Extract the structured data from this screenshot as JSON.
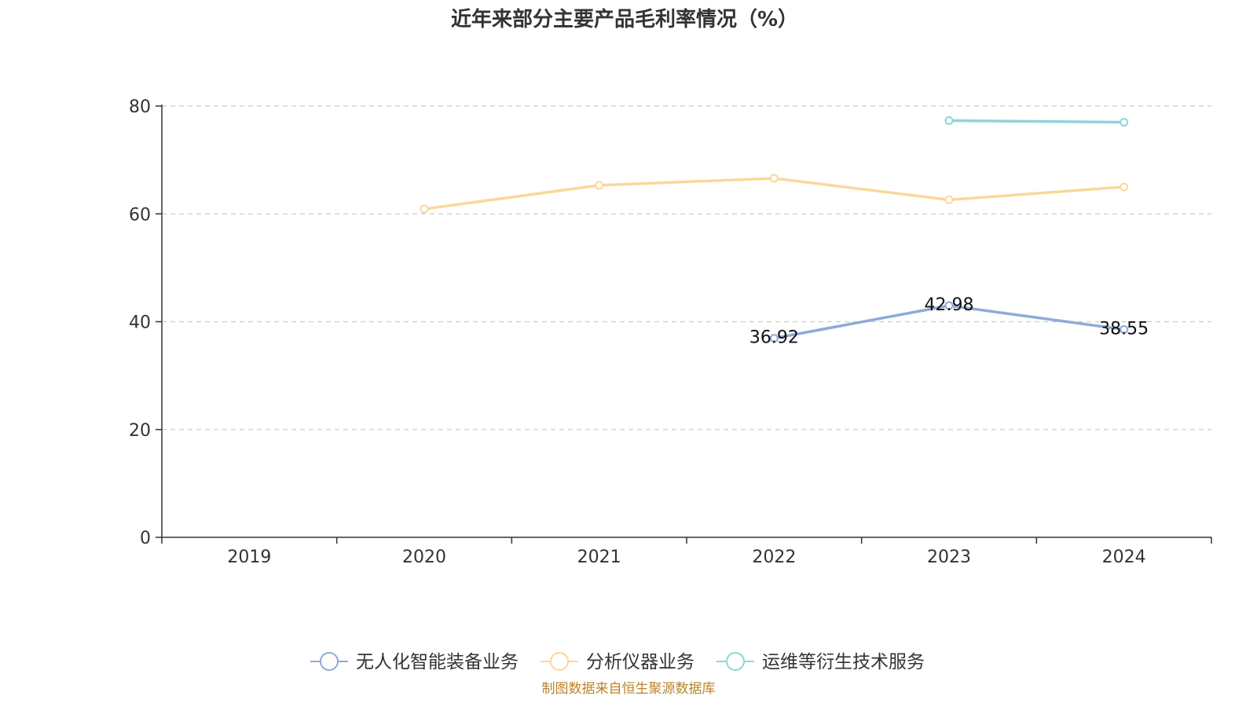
{
  "chart_data": {
    "type": "line",
    "title": "近年来部分主要产品毛利率情况（%）",
    "categories": [
      "2019",
      "2020",
      "2021",
      "2022",
      "2023",
      "2024"
    ],
    "ylim": [
      0,
      80
    ],
    "yticks": [
      0,
      20,
      40,
      60,
      80
    ],
    "grid": true,
    "legend_position": "bottom",
    "series": [
      {
        "name": "无人化智能装备业务",
        "color": "#8eaad8",
        "values": [
          null,
          null,
          null,
          36.92,
          42.98,
          38.55
        ],
        "labels": [
          "",
          "",
          "",
          "36.92",
          "42.98",
          "38.55"
        ]
      },
      {
        "name": "分析仪器业务",
        "color": "#fad899",
        "values": [
          null,
          60.9,
          65.3,
          66.6,
          62.6,
          65.0
        ],
        "labels": [
          "",
          "",
          "",
          "",
          "",
          ""
        ]
      },
      {
        "name": "运维等衍生技术服务",
        "color": "#8ed5d8",
        "values": [
          null,
          null,
          null,
          null,
          77.3,
          77.0
        ],
        "labels": [
          "",
          "",
          "",
          "",
          "",
          ""
        ]
      }
    ]
  },
  "source": "制图数据来自恒生聚源数据库"
}
